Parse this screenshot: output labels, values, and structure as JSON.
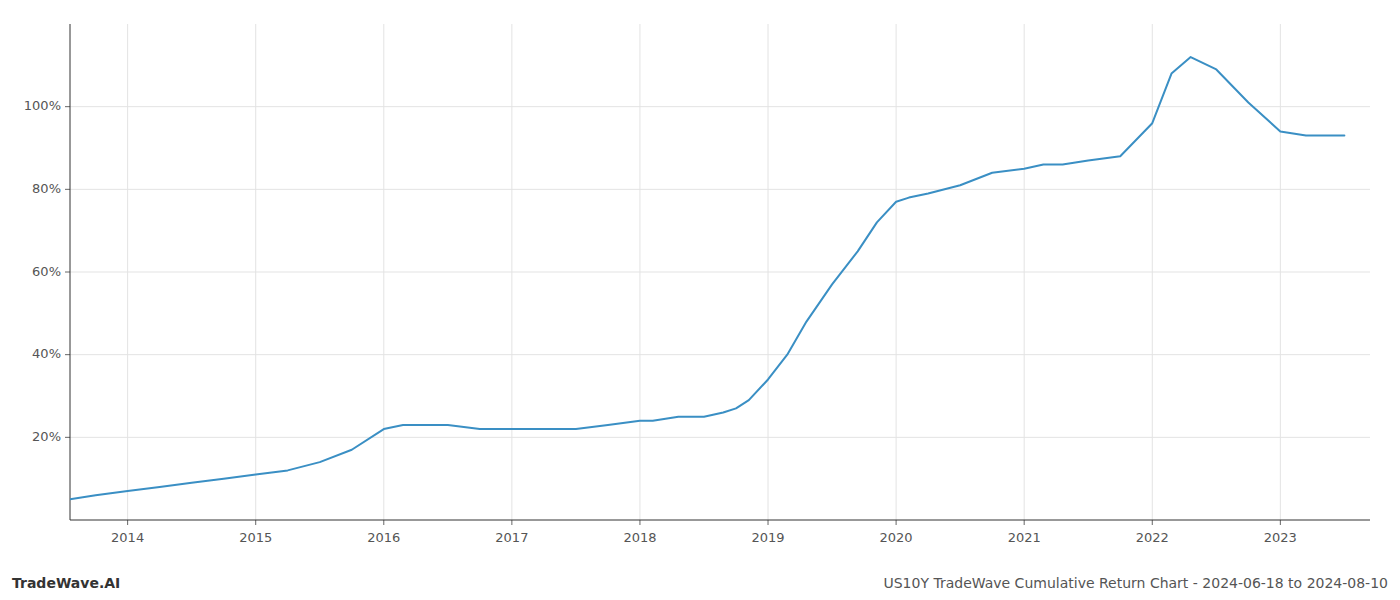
{
  "chart_data": {
    "type": "line",
    "annotations": [
      "TradeWave.AI",
      "US10Y TradeWave Cumulative Return Chart - 2024-06-18 to 2024-08-10"
    ],
    "color": "#3a8fc4",
    "x": [
      2013.55,
      2013.75,
      2014.0,
      2014.25,
      2014.5,
      2014.75,
      2015.0,
      2015.25,
      2015.5,
      2015.75,
      2016.0,
      2016.15,
      2016.3,
      2016.5,
      2016.75,
      2017.0,
      2017.25,
      2017.5,
      2017.75,
      2018.0,
      2018.1,
      2018.3,
      2018.5,
      2018.65,
      2018.75,
      2018.85,
      2019.0,
      2019.15,
      2019.3,
      2019.5,
      2019.7,
      2019.85,
      2020.0,
      2020.1,
      2020.25,
      2020.5,
      2020.75,
      2021.0,
      2021.15,
      2021.3,
      2021.5,
      2021.75,
      2022.0,
      2022.15,
      2022.3,
      2022.5,
      2022.75,
      2023.0,
      2023.2,
      2023.5
    ],
    "values": [
      5,
      6,
      7,
      8,
      9,
      10,
      11,
      12,
      14,
      17,
      22,
      23,
      23,
      23,
      22,
      22,
      22,
      22,
      23,
      24,
      24,
      25,
      25,
      26,
      27,
      29,
      34,
      40,
      48,
      57,
      65,
      72,
      77,
      78,
      79,
      81,
      84,
      85,
      86,
      86,
      87,
      88,
      96,
      108,
      112,
      109,
      101,
      94,
      93,
      93
    ],
    "xlim": [
      2013.55,
      2023.7
    ],
    "ylim": [
      0,
      120
    ],
    "xticks": [
      2014,
      2015,
      2016,
      2017,
      2018,
      2019,
      2020,
      2021,
      2022,
      2023
    ],
    "yticks": [
      {
        "value": 20,
        "label": "20%"
      },
      {
        "value": 40,
        "label": "40%"
      },
      {
        "value": 60,
        "label": "60%"
      },
      {
        "value": 80,
        "label": "80%"
      },
      {
        "value": 100,
        "label": "100%"
      }
    ],
    "grid": true
  }
}
